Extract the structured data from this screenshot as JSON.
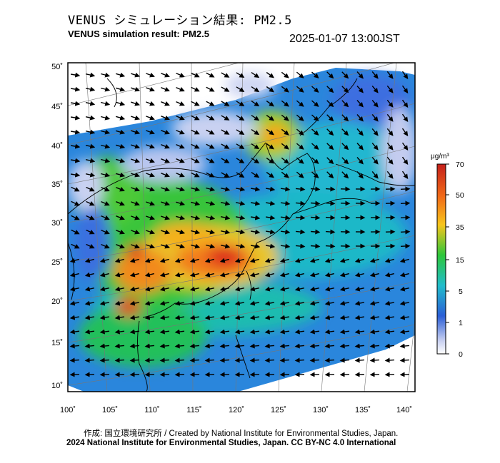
{
  "header": {
    "title_jp": "VENUS シミュレーション結果: PM2.5",
    "title_en": "VENUS simulation result: PM2.5",
    "timestamp": "2025-01-07 13:00JST"
  },
  "map": {
    "lon_ticks": [
      "100˚",
      "105˚",
      "110˚",
      "115˚",
      "120˚",
      "125˚",
      "130˚",
      "135˚",
      "140˚"
    ],
    "lat_ticks": [
      "50˚",
      "45˚",
      "40˚",
      "35˚",
      "30˚",
      "25˚",
      "20˚",
      "15˚",
      "10˚"
    ]
  },
  "colorbar": {
    "unit": "μg/m³",
    "labels": [
      "70",
      "50",
      "35",
      "15",
      "5",
      "1",
      "0"
    ],
    "colors": [
      "#d7261e",
      "#f57b17",
      "#f5c21a",
      "#2cc23b",
      "#1fb8c8",
      "#2f64d8",
      "#c9d0f0",
      "#ffffff"
    ]
  },
  "footer": {
    "credit_jp": "作成: 国立環境研究所 / Created by National Institute for Environmental Studies, Japan.",
    "credit_en": "2024 National Institute for Environmental Studies, Japan. CC BY-NC 4.0 International"
  }
}
